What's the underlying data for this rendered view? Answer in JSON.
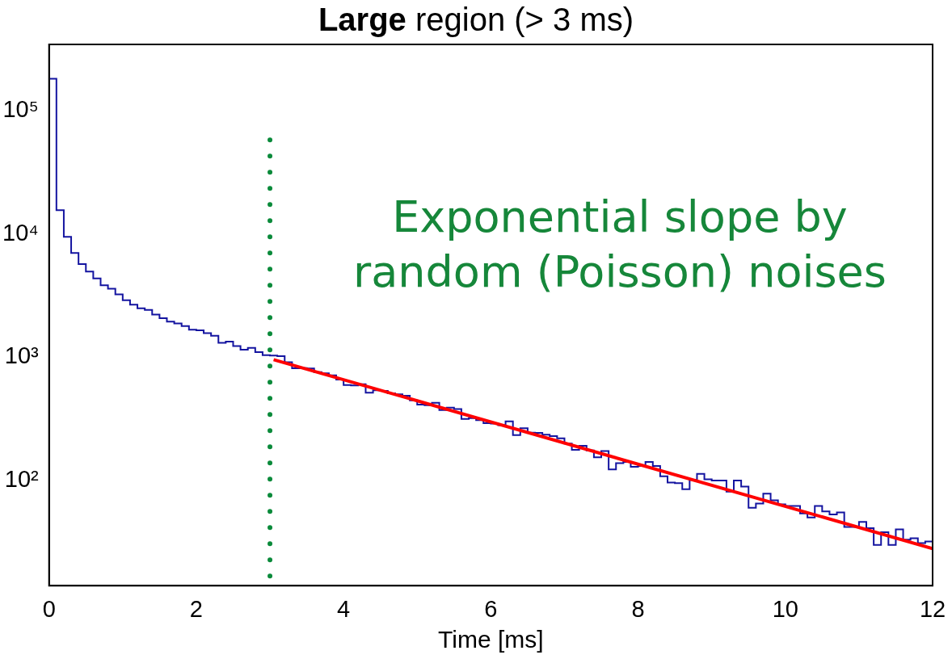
{
  "chart_data": {
    "type": "histogram",
    "title": "Large region (> 3 ms)",
    "xlabel": "Time [ms]",
    "xlim": [
      0,
      12
    ],
    "xticks": [
      0,
      2,
      4,
      6,
      8,
      10,
      12
    ],
    "ylim": [
      14,
      345000
    ],
    "yticks": [
      {
        "value": 100,
        "label": "10²"
      },
      {
        "value": 1000,
        "label": "10³"
      },
      {
        "value": 10000,
        "label": "10⁴"
      },
      {
        "value": 100000,
        "label": "10⁵"
      }
    ],
    "log": "y",
    "grid": false,
    "legend": false,
    "series": [
      {
        "type": "histogram",
        "color": "#1414a0",
        "bins": [
          0,
          0.1,
          0.2,
          0.3,
          0.4,
          0.5,
          0.6,
          0.7,
          0.8,
          0.9,
          1,
          1.1,
          1.2,
          1.3,
          1.4,
          1.5,
          1.6,
          1.7,
          1.8,
          1.9,
          2,
          2.1,
          2.2,
          2.3,
          2.4,
          2.5,
          2.6,
          2.7,
          2.8,
          2.9,
          3,
          3.1,
          3.2,
          3.3,
          3.4,
          3.5,
          3.6,
          3.7,
          3.8,
          3.9,
          4,
          4.1,
          4.2,
          4.3,
          4.4,
          4.5,
          4.6,
          4.7,
          4.8,
          4.9,
          5,
          5.1,
          5.2,
          5.3,
          5.4,
          5.5,
          5.6,
          5.7,
          5.8,
          5.9,
          6,
          6.1,
          6.2,
          6.3,
          6.4,
          6.5,
          6.6,
          6.7,
          6.8,
          6.9,
          7,
          7.1,
          7.2,
          7.3,
          7.4,
          7.5,
          7.6,
          7.7,
          7.8,
          7.9,
          8,
          8.1,
          8.2,
          8.3,
          8.4,
          8.5,
          8.6,
          8.7,
          8.8,
          8.9,
          9,
          9.1,
          9.2,
          9.3,
          9.4,
          9.5,
          9.6,
          9.7,
          9.8,
          9.9,
          10,
          10.1,
          10.2,
          10.3,
          10.4,
          10.5,
          10.6,
          10.7,
          10.8,
          10.9,
          11,
          11.1,
          11.2,
          11.3,
          11.4,
          11.5,
          11.6,
          11.7,
          11.8,
          11.9,
          12
        ],
        "values": [
          182000,
          15600,
          9460,
          7000,
          5700,
          4950,
          4350,
          3830,
          3600,
          3240,
          2900,
          2670,
          2490,
          2420,
          2220,
          2070,
          1940,
          1880,
          1790,
          1670,
          1650,
          1570,
          1490,
          1310,
          1340,
          1230,
          1150,
          1190,
          1100,
          1040,
          1030,
          1020,
          912,
          812,
          815,
          810,
          757,
          739,
          712,
          658,
          594,
          589,
          603,
          516,
          538,
          533,
          509,
          500,
          486,
          447,
          413,
          407,
          427,
          372,
          390,
          380,
          315,
          320,
          308,
          291,
          289,
          281,
          301,
          233,
          265,
          244,
          243,
          235,
          229,
          220,
          199,
          177,
          191,
          175,
          154,
          173,
          123,
          138,
          141,
          129,
          131,
          141,
          131,
          108,
          96,
          95,
          85,
          101,
          113,
          102,
          100,
          100,
          81,
          100,
          89,
          60,
          65,
          78,
          69,
          64,
          62,
          62,
          54,
          50,
          62,
          56,
          53,
          55,
          42,
          42,
          46,
          41,
          30,
          38,
          30,
          40,
          33,
          34,
          31,
          32
        ]
      },
      {
        "type": "line",
        "color": "#ff0000",
        "x": [
          3.05,
          12
        ],
        "values": [
          955,
          28
        ]
      }
    ],
    "ref_lines": [
      {
        "axis": "x",
        "value": 3,
        "color": "#0a8a3a",
        "line_style": "dotted"
      }
    ],
    "annotations": [
      "Exponential slope by random (Poisson) noises"
    ]
  }
}
